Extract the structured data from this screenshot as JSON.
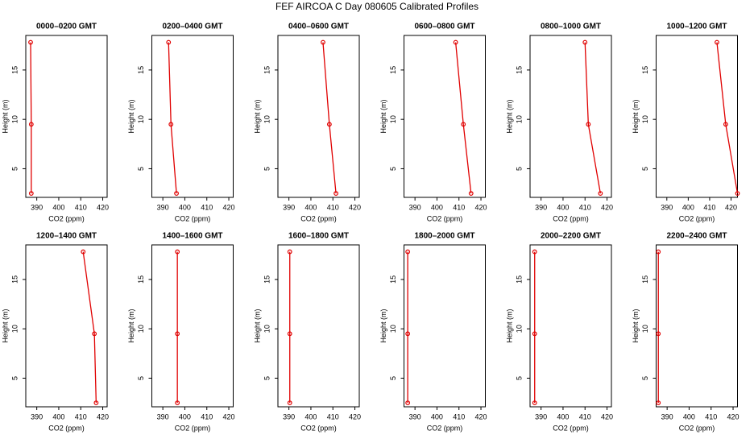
{
  "title": "FEF AIRCOA C  Day 080605  Calibrated Profiles",
  "chart_data": [
    {
      "type": "line",
      "title": "0000–0200 GMT",
      "xlabel": "CO2 (ppm)",
      "ylabel": "Height (m)",
      "color": "#e00000",
      "x": [
        387.2,
        387.5,
        387.5
      ],
      "values": [
        17.8,
        9.5,
        2.5
      ],
      "xlim": [
        385,
        422
      ],
      "ylim": [
        2.1,
        18.5
      ],
      "xticks": [
        390,
        400,
        410,
        420
      ],
      "yticks": [
        5,
        10,
        15
      ]
    },
    {
      "type": "line",
      "title": "0200–0400 GMT",
      "xlabel": "CO2 (ppm)",
      "ylabel": "Height (m)",
      "color": "#e00000",
      "x": [
        392.6,
        393.7,
        396.2
      ],
      "values": [
        17.8,
        9.5,
        2.5
      ],
      "xlim": [
        385,
        422
      ],
      "ylim": [
        2.1,
        18.5
      ],
      "xticks": [
        390,
        400,
        410,
        420
      ],
      "yticks": [
        5,
        10,
        15
      ]
    },
    {
      "type": "line",
      "title": "0400–0600 GMT",
      "xlabel": "CO2 (ppm)",
      "ylabel": "Height (m)",
      "color": "#e00000",
      "x": [
        405.5,
        408.4,
        411.4
      ],
      "values": [
        17.8,
        9.5,
        2.5
      ],
      "xlim": [
        385,
        422
      ],
      "ylim": [
        2.1,
        18.5
      ],
      "xticks": [
        390,
        400,
        410,
        420
      ],
      "yticks": [
        5,
        10,
        15
      ]
    },
    {
      "type": "line",
      "title": "0600–0800 GMT",
      "xlabel": "CO2 (ppm)",
      "ylabel": "Height (m)",
      "color": "#e00000",
      "x": [
        408.5,
        412,
        415.5
      ],
      "values": [
        17.8,
        9.5,
        2.5
      ],
      "xlim": [
        385,
        422
      ],
      "ylim": [
        2.1,
        18.5
      ],
      "xticks": [
        390,
        400,
        410,
        420
      ],
      "yticks": [
        5,
        10,
        15
      ]
    },
    {
      "type": "line",
      "title": "0800–1000 GMT",
      "xlabel": "CO2 (ppm)",
      "ylabel": "Height (m)",
      "color": "#e00000",
      "x": [
        410,
        411.5,
        417
      ],
      "values": [
        17.8,
        9.5,
        2.5
      ],
      "xlim": [
        385,
        422
      ],
      "ylim": [
        2.1,
        18.5
      ],
      "xticks": [
        390,
        400,
        410,
        420
      ],
      "yticks": [
        5,
        10,
        15
      ]
    },
    {
      "type": "line",
      "title": "1000–1200 GMT",
      "xlabel": "CO2 (ppm)",
      "ylabel": "Height (m)",
      "color": "#e00000",
      "x": [
        413.4,
        417.5,
        423
      ],
      "values": [
        17.8,
        9.5,
        2.5
      ],
      "xlim": [
        385,
        423
      ],
      "ylim": [
        2.1,
        18.5
      ],
      "xticks": [
        390,
        400,
        410,
        420
      ],
      "yticks": [
        5,
        10,
        15
      ]
    },
    {
      "type": "line",
      "title": "1200–1400 GMT",
      "xlabel": "CO2 (ppm)",
      "ylabel": "Height (m)",
      "color": "#e00000",
      "x": [
        411.1,
        416.2,
        417
      ],
      "values": [
        17.8,
        9.5,
        2.5
      ],
      "xlim": [
        385,
        422
      ],
      "ylim": [
        2.1,
        18.5
      ],
      "xticks": [
        390,
        400,
        410,
        420
      ],
      "yticks": [
        5,
        10,
        15
      ]
    },
    {
      "type": "line",
      "title": "1400–1600 GMT",
      "xlabel": "CO2 (ppm)",
      "ylabel": "Height (m)",
      "color": "#e00000",
      "x": [
        396.6,
        396.6,
        396.6
      ],
      "values": [
        17.8,
        9.5,
        2.5
      ],
      "xlim": [
        385,
        422
      ],
      "ylim": [
        2.1,
        18.5
      ],
      "xticks": [
        390,
        400,
        410,
        420
      ],
      "yticks": [
        5,
        10,
        15
      ]
    },
    {
      "type": "line",
      "title": "1600–1800 GMT",
      "xlabel": "CO2 (ppm)",
      "ylabel": "Height (m)",
      "color": "#e00000",
      "x": [
        390.4,
        390.4,
        390.4
      ],
      "values": [
        17.8,
        9.5,
        2.5
      ],
      "xlim": [
        385,
        422
      ],
      "ylim": [
        2.1,
        18.5
      ],
      "xticks": [
        390,
        400,
        410,
        420
      ],
      "yticks": [
        5,
        10,
        15
      ]
    },
    {
      "type": "line",
      "title": "1800–2000 GMT",
      "xlabel": "CO2 (ppm)",
      "ylabel": "Height (m)",
      "color": "#e00000",
      "x": [
        386.7,
        386.7,
        386.7
      ],
      "values": [
        17.8,
        9.5,
        2.5
      ],
      "xlim": [
        385,
        422
      ],
      "ylim": [
        2.1,
        18.5
      ],
      "xticks": [
        390,
        400,
        410,
        420
      ],
      "yticks": [
        5,
        10,
        15
      ]
    },
    {
      "type": "line",
      "title": "2000–2200 GMT",
      "xlabel": "CO2 (ppm)",
      "ylabel": "Height (m)",
      "color": "#e00000",
      "x": [
        387.1,
        387.1,
        387.1
      ],
      "values": [
        17.8,
        9.5,
        2.5
      ],
      "xlim": [
        385,
        422
      ],
      "ylim": [
        2.1,
        18.5
      ],
      "xticks": [
        390,
        400,
        410,
        420
      ],
      "yticks": [
        5,
        10,
        15
      ]
    },
    {
      "type": "line",
      "title": "2200–2400 GMT",
      "xlabel": "CO2 (ppm)",
      "ylabel": "Height (m)",
      "color": "#e00000",
      "x": [
        386,
        386,
        386
      ],
      "values": [
        17.8,
        9.5,
        2.5
      ],
      "xlim": [
        385,
        422
      ],
      "ylim": [
        2.1,
        18.5
      ],
      "xticks": [
        390,
        400,
        410,
        420
      ],
      "yticks": [
        5,
        10,
        15
      ]
    }
  ]
}
